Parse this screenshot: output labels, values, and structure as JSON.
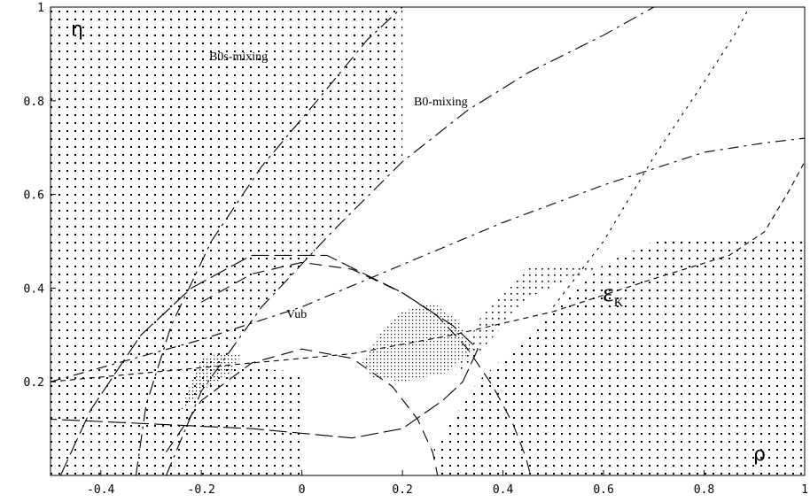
{
  "chart_data": {
    "type": "scatter",
    "x_ticks": [
      "-0.4",
      "-0.2",
      "0",
      "0.2",
      "0.4",
      "0.6",
      "0.8",
      "1"
    ],
    "y_ticks": [
      "0.2",
      "0.4",
      "0.6",
      "0.8",
      "1"
    ],
    "xlim": [
      -0.5,
      1.0
    ],
    "ylim": [
      0.0,
      1.0
    ],
    "x_symbol": "ρ",
    "y_symbol": "η",
    "annotations": {
      "b0s_mixing": "B0s-mixing",
      "b0_mixing": "B0-mixing",
      "vub": "Vub",
      "eps_symbol": "ε",
      "eps_sub": "K"
    },
    "curves": [
      {
        "id": "vub-outer",
        "points": [
          [
            -0.2,
            0.37
          ],
          [
            -0.1,
            0.43
          ],
          [
            0.0,
            0.455
          ],
          [
            0.1,
            0.44
          ],
          [
            0.2,
            0.39
          ],
          [
            0.27,
            0.34
          ],
          [
            0.33,
            0.27
          ],
          [
            0.38,
            0.19
          ],
          [
            0.42,
            0.11
          ],
          [
            0.445,
            0.04
          ],
          [
            0.455,
            0.0
          ]
        ]
      },
      {
        "id": "vub-inner",
        "points": [
          [
            -0.27,
            0.05
          ],
          [
            -0.2,
            0.16
          ],
          [
            -0.1,
            0.24
          ],
          [
            0.0,
            0.27
          ],
          [
            0.1,
            0.25
          ],
          [
            0.18,
            0.19
          ],
          [
            0.23,
            0.12
          ],
          [
            0.26,
            0.05
          ],
          [
            0.27,
            0.0
          ]
        ]
      },
      {
        "id": "b0-mixing-left",
        "points": [
          [
            -0.33,
            0.0
          ],
          [
            -0.31,
            0.15
          ],
          [
            -0.26,
            0.32
          ],
          [
            -0.18,
            0.5
          ],
          [
            -0.08,
            0.66
          ],
          [
            0.03,
            0.8
          ],
          [
            0.13,
            0.93
          ],
          [
            0.2,
            1.0
          ]
        ]
      },
      {
        "id": "b0-mixing-right",
        "points": [
          [
            -0.27,
            0.0
          ],
          [
            -0.2,
            0.18
          ],
          [
            -0.08,
            0.36
          ],
          [
            0.06,
            0.52
          ],
          [
            0.2,
            0.67
          ],
          [
            0.33,
            0.78
          ],
          [
            0.45,
            0.86
          ],
          [
            0.6,
            0.94
          ],
          [
            0.7,
            1.0
          ]
        ]
      },
      {
        "id": "b0s-mixing",
        "points": [
          [
            -0.48,
            0.0
          ],
          [
            -0.42,
            0.14
          ],
          [
            -0.32,
            0.3
          ],
          [
            -0.22,
            0.4
          ],
          [
            -0.1,
            0.47
          ],
          [
            0.05,
            0.47
          ],
          [
            0.2,
            0.39
          ],
          [
            0.3,
            0.32
          ],
          [
            0.35,
            0.27
          ],
          [
            0.32,
            0.2
          ],
          [
            0.28,
            0.16
          ],
          [
            0.2,
            0.1
          ],
          [
            0.1,
            0.08
          ],
          [
            -0.1,
            0.1
          ],
          [
            -0.5,
            0.12
          ]
        ]
      },
      {
        "id": "eps-k-upper",
        "points": [
          [
            -0.5,
            0.2
          ],
          [
            -0.2,
            0.29
          ],
          [
            0.0,
            0.36
          ],
          [
            0.2,
            0.45
          ],
          [
            0.4,
            0.54
          ],
          [
            0.6,
            0.62
          ],
          [
            0.8,
            0.69
          ],
          [
            0.92,
            0.71
          ],
          [
            1.0,
            0.72
          ]
        ]
      },
      {
        "id": "eps-k-lower",
        "points": [
          [
            -0.5,
            0.2
          ],
          [
            -0.3,
            0.22
          ],
          [
            -0.1,
            0.24
          ],
          [
            0.1,
            0.26
          ],
          [
            0.3,
            0.3
          ],
          [
            0.5,
            0.35
          ],
          [
            0.7,
            0.42
          ],
          [
            0.85,
            0.47
          ],
          [
            0.92,
            0.52
          ],
          [
            0.97,
            0.61
          ],
          [
            1.0,
            0.67
          ]
        ]
      },
      {
        "id": "eps-k-diag",
        "points": [
          [
            0.5,
            0.36
          ],
          [
            0.6,
            0.5
          ],
          [
            0.7,
            0.68
          ],
          [
            0.8,
            0.84
          ],
          [
            0.86,
            0.94
          ],
          [
            0.89,
            1.0
          ]
        ]
      }
    ],
    "dense_regions": [
      {
        "id": "overlap-main",
        "points": [
          [
            0.12,
            0.24
          ],
          [
            0.16,
            0.31
          ],
          [
            0.2,
            0.35
          ],
          [
            0.26,
            0.37
          ],
          [
            0.31,
            0.33
          ],
          [
            0.34,
            0.27
          ],
          [
            0.29,
            0.22
          ],
          [
            0.2,
            0.2
          ],
          [
            0.14,
            0.21
          ]
        ]
      },
      {
        "id": "overlap-left",
        "points": [
          [
            -0.24,
            0.14
          ],
          [
            -0.22,
            0.2
          ],
          [
            -0.2,
            0.25
          ],
          [
            -0.16,
            0.26
          ],
          [
            -0.12,
            0.26
          ],
          [
            -0.14,
            0.22
          ],
          [
            -0.2,
            0.18
          ]
        ]
      }
    ]
  }
}
